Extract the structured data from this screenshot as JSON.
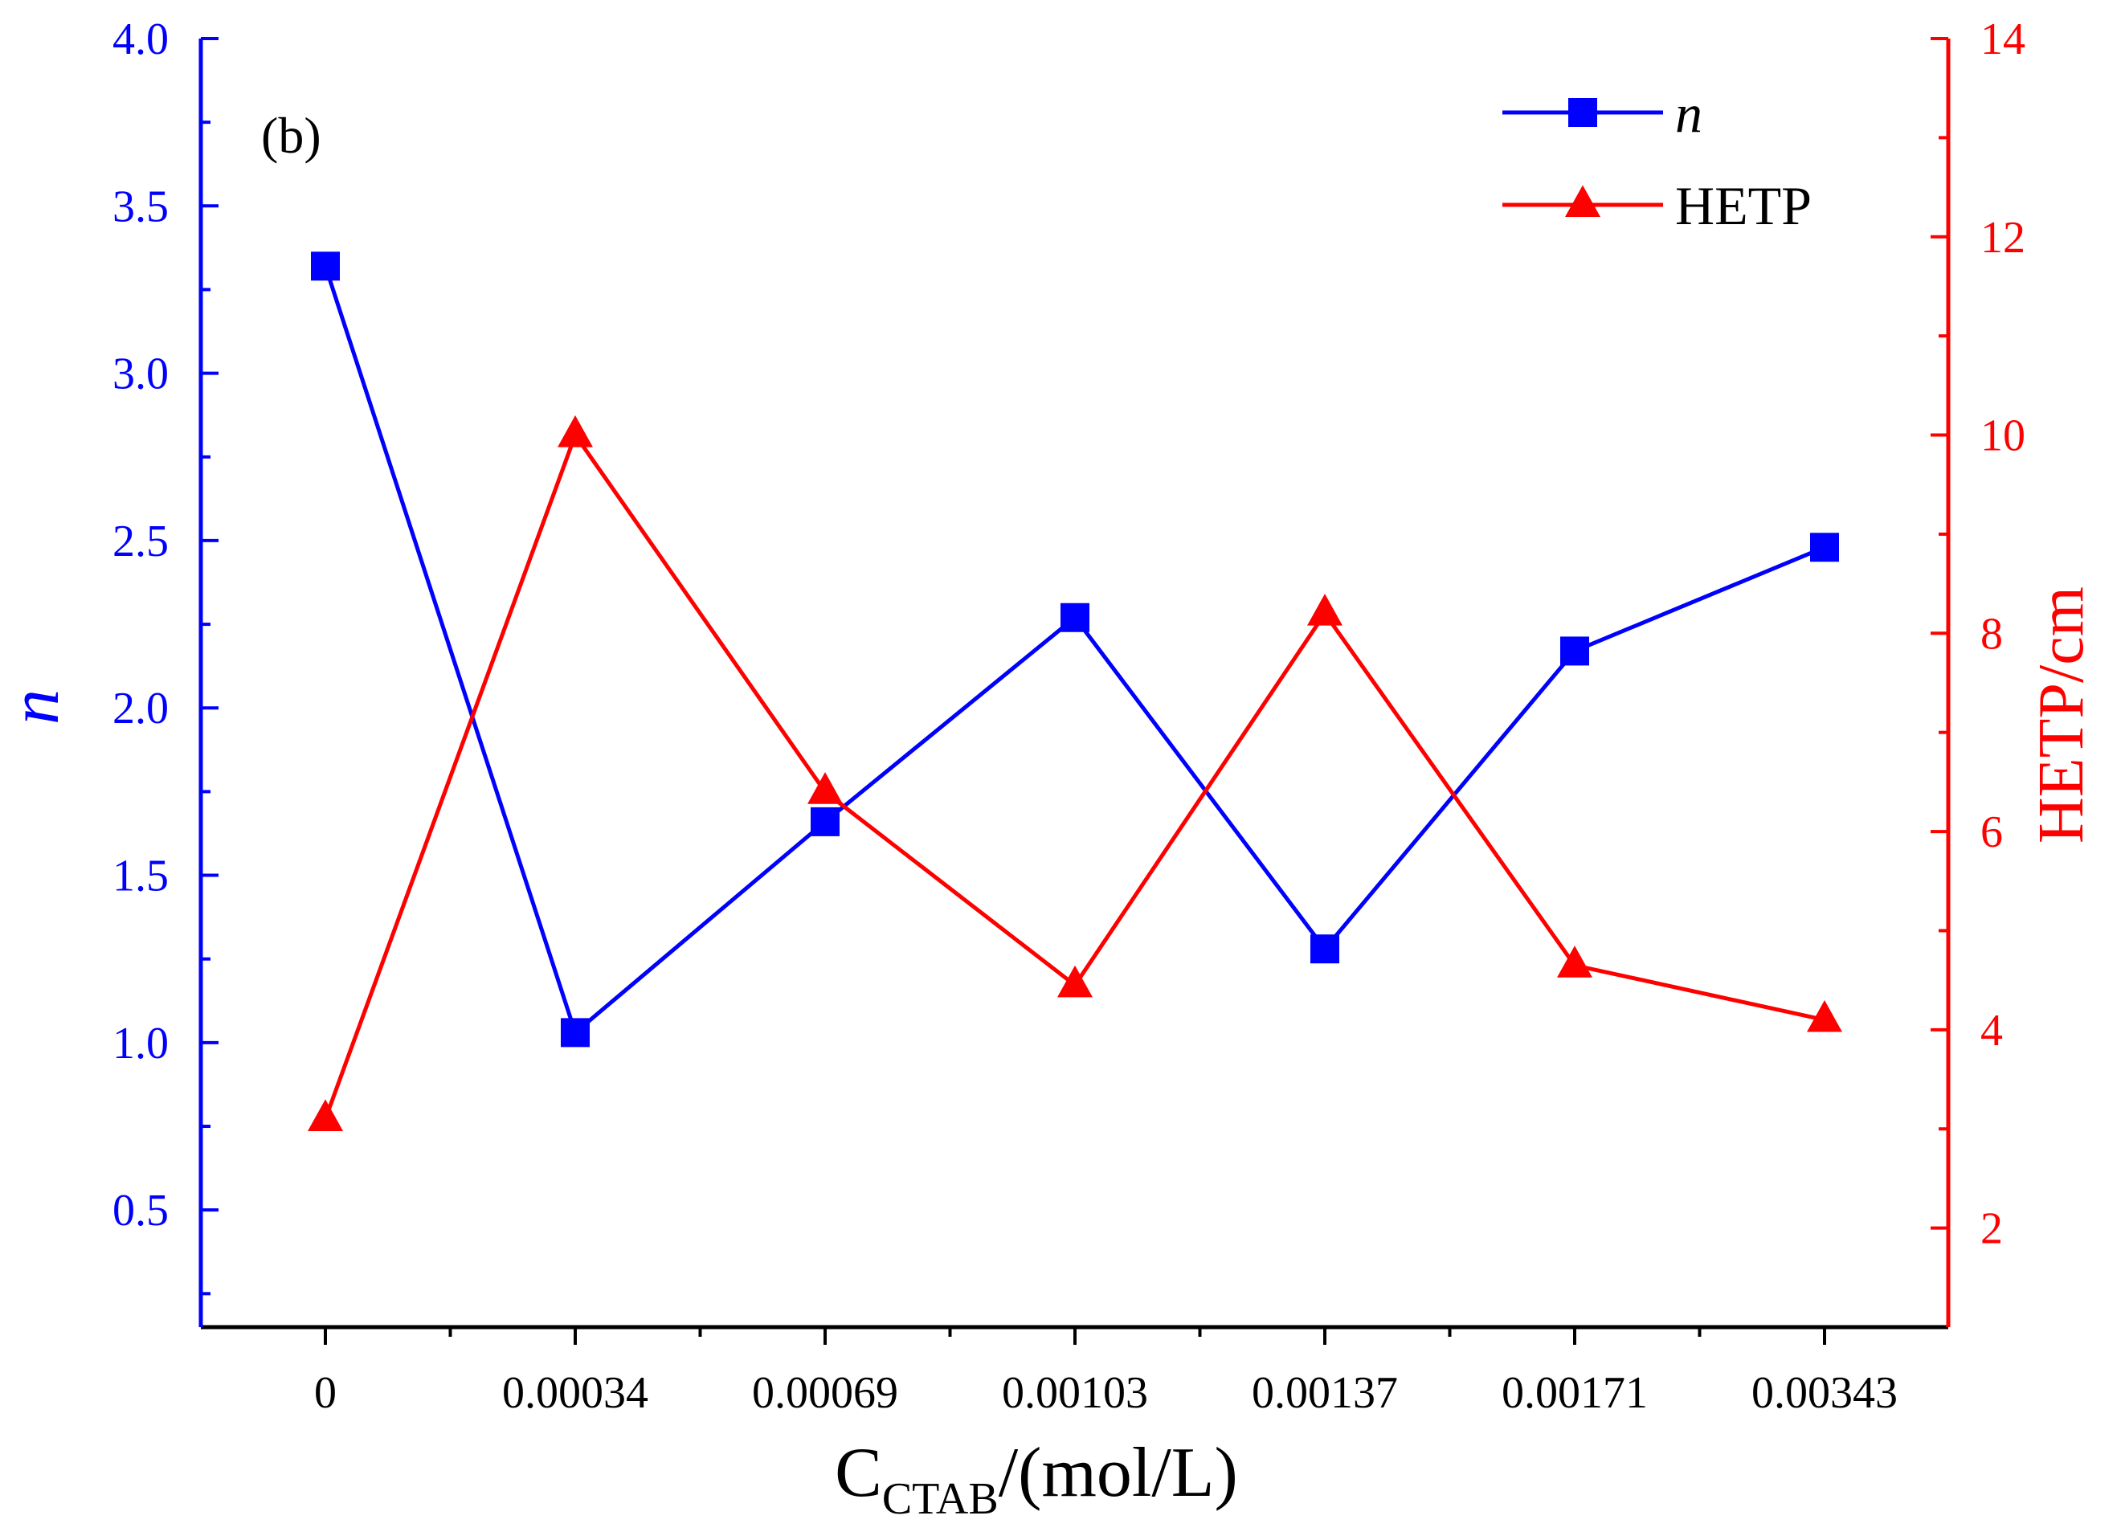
{
  "chart_data": {
    "type": "line",
    "panel_label": "(b)",
    "categories": [
      "0",
      "0.00034",
      "0.00069",
      "0.00103",
      "0.00137",
      "0.00171",
      "0.00343"
    ],
    "xlabel": {
      "main": "C",
      "subscript": "CTAB",
      "suffix": "/(mol/L)"
    },
    "y_left": {
      "label": "n",
      "ylim": [
        0.15,
        4.0
      ],
      "ticks": [
        0.5,
        1.0,
        1.5,
        2.0,
        2.5,
        3.0,
        3.5,
        4.0
      ],
      "tick_labels": [
        "0.5",
        "1.0",
        "1.5",
        "2.0",
        "2.5",
        "3.0",
        "3.5",
        "4.0"
      ],
      "color": "#0000ff"
    },
    "y_right": {
      "label": "HETP/cm",
      "ylim": [
        1.0,
        14.0
      ],
      "ticks": [
        2,
        4,
        6,
        8,
        10,
        12,
        14
      ],
      "tick_labels": [
        "2",
        "4",
        "6",
        "8",
        "10",
        "12",
        "14"
      ],
      "color": "#ff0000"
    },
    "series": [
      {
        "name": "n",
        "axis": "left",
        "marker": "square",
        "color": "#0000ff",
        "values": [
          3.32,
          1.03,
          1.66,
          2.27,
          1.28,
          2.17,
          2.48
        ]
      },
      {
        "name": "HETP",
        "axis": "right",
        "marker": "triangle",
        "color": "#ff0000",
        "values": [
          3.1,
          10.0,
          6.4,
          4.45,
          8.2,
          4.65,
          4.1
        ]
      }
    ],
    "legend_position": "top-right",
    "grid": false
  }
}
